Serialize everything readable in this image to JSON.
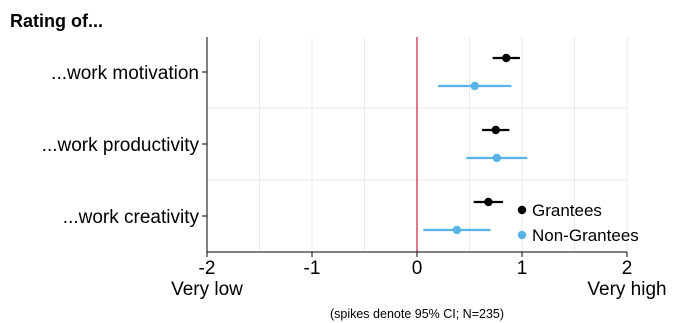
{
  "chart_data": {
    "type": "scatter",
    "title": "Rating of...",
    "categories": [
      "...work motivation",
      "...work productivity",
      "...work creativity"
    ],
    "xlim": [
      -2,
      2
    ],
    "x_ticks": [
      -2,
      -1,
      0,
      1,
      2
    ],
    "x_tick_labels": [
      "-2",
      "-1",
      "0",
      "1",
      "2"
    ],
    "x_end_labels": {
      "low": "Very low",
      "high": "Very high"
    },
    "caption": "(spikes denote 95% CI; N=235)",
    "reference_line": {
      "x": 0,
      "color": "#d21f3c"
    },
    "grid": true,
    "legend_position": "bottom-right",
    "series": [
      {
        "name": "Grantees",
        "color": "#000000",
        "points": [
          {
            "category": "...work motivation",
            "value": 0.85,
            "ci": [
              0.72,
              0.98
            ]
          },
          {
            "category": "...work productivity",
            "value": 0.75,
            "ci": [
              0.62,
              0.88
            ]
          },
          {
            "category": "...work creativity",
            "value": 0.68,
            "ci": [
              0.54,
              0.82
            ]
          }
        ]
      },
      {
        "name": "Non-Grantees",
        "color": "#56b4e9",
        "points": [
          {
            "category": "...work motivation",
            "value": 0.55,
            "ci": [
              0.2,
              0.9
            ]
          },
          {
            "category": "...work productivity",
            "value": 0.76,
            "ci": [
              0.47,
              1.05
            ]
          },
          {
            "category": "...work creativity",
            "value": 0.38,
            "ci": [
              0.06,
              0.7
            ]
          }
        ]
      }
    ]
  }
}
